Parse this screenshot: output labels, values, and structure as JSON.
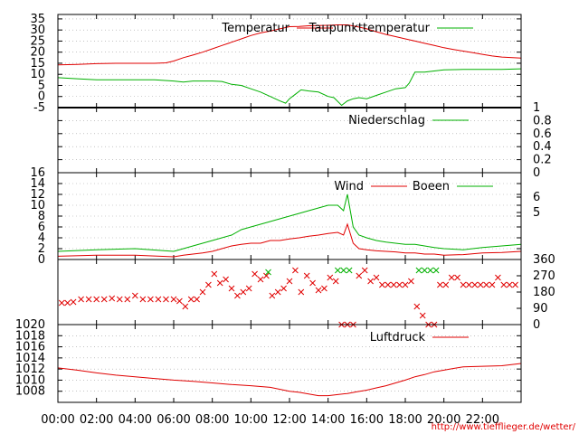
{
  "colors": {
    "red": "#e00000",
    "green": "#00b000",
    "grid": "#a0a0a0",
    "credit": "#e00000"
  },
  "x_ticks": [
    "00:00",
    "02:00",
    "04:00",
    "06:00",
    "08:00",
    "10:00",
    "12:00",
    "14:00",
    "16:00",
    "18:00",
    "20:00",
    "22:00"
  ],
  "credit": "http://www.tiefflieger.de/wetter/",
  "chart_data": [
    {
      "type": "line",
      "x_range_hours": [
        0,
        24
      ],
      "ylim": [
        -5,
        37
      ],
      "yticks": [
        "35",
        "30",
        "25",
        "20",
        "15",
        "10",
        "5",
        "0",
        "-5"
      ],
      "grid": true,
      "legend": "top-right",
      "series": [
        {
          "name": "Temperatur",
          "color": "red",
          "x": [
            0,
            1,
            2,
            3,
            4,
            5,
            5.6,
            6,
            6.5,
            7,
            7.5,
            8,
            8.5,
            9,
            9.5,
            10,
            10.5,
            11,
            11.5,
            12,
            12.5,
            13,
            13.5,
            14,
            14.5,
            15,
            15.5,
            16,
            16.5,
            17,
            17.5,
            18,
            18.5,
            19,
            19.5,
            20,
            20.5,
            21,
            21.5,
            22,
            22.5,
            23,
            24
          ],
          "y": [
            14.3,
            14.5,
            14.8,
            15,
            15,
            15,
            15.2,
            16,
            17.5,
            18.7,
            20,
            21.5,
            23,
            24.5,
            26,
            27.5,
            28.7,
            29.5,
            30.5,
            31.5,
            31.6,
            31.9,
            32,
            32.1,
            32.3,
            32.3,
            31.5,
            30.5,
            29.2,
            28,
            27,
            26,
            25,
            24,
            23,
            22,
            21.2,
            20.5,
            19.8,
            19,
            18.3,
            17.8,
            17.3
          ]
        },
        {
          "name": "Taupunkttemperatur",
          "color": "green",
          "x": [
            0,
            1,
            2,
            3,
            4,
            5,
            6,
            6.5,
            7,
            8,
            8.5,
            9,
            9.5,
            10,
            10.5,
            11,
            11.5,
            11.8,
            12,
            12.3,
            12.6,
            13,
            13.5,
            14,
            14.3,
            14.7,
            15,
            15.3,
            15.6,
            16,
            16.5,
            17,
            17.5,
            18,
            18.2,
            18.5,
            19,
            20,
            21,
            22,
            23,
            24
          ],
          "y": [
            8.5,
            8,
            7.5,
            7.5,
            7.5,
            7.5,
            7,
            6.5,
            7,
            7,
            6.8,
            5.5,
            5,
            3.5,
            2,
            0,
            -2,
            -3,
            -1,
            1,
            3,
            2.5,
            2,
            0,
            -0.5,
            -4,
            -2,
            -1,
            -0.5,
            -1,
            0.5,
            2,
            3.5,
            4,
            6,
            11,
            11,
            12,
            12.2,
            12.2,
            12.2,
            12.5
          ]
        }
      ]
    },
    {
      "type": "line",
      "x_range_hours": [
        0,
        24
      ],
      "ylim": [
        0,
        1
      ],
      "yticks": [
        "1",
        "0.8",
        "0.6",
        "0.4",
        "0.2",
        "0"
      ],
      "axis_side": "right",
      "series": [
        {
          "name": "Niederschlag",
          "color": "green",
          "x": [
            0,
            24
          ],
          "y": [
            0,
            0
          ]
        }
      ]
    },
    {
      "type": "line",
      "x_range_hours": [
        0,
        24
      ],
      "ylim": [
        0,
        16
      ],
      "yticks": [
        "16",
        "14",
        "12",
        "10",
        "8",
        "6",
        "4",
        "2",
        "0"
      ],
      "right_ticks": [
        "6",
        "5"
      ],
      "series": [
        {
          "name": "Wind",
          "color": "red",
          "x": [
            0,
            2,
            4,
            6,
            6.5,
            7,
            7.5,
            8,
            8.5,
            9,
            9.5,
            10,
            10.5,
            11,
            11.5,
            12,
            12.5,
            13,
            13.5,
            14,
            14.5,
            14.8,
            15,
            15.3,
            15.6,
            16,
            16.5,
            17,
            17.5,
            18,
            18.5,
            19,
            19.5,
            20,
            21,
            22,
            23,
            24
          ],
          "y": [
            0.6,
            0.8,
            0.8,
            0.5,
            0.8,
            1,
            1.2,
            1.5,
            2,
            2.5,
            2.8,
            3,
            3,
            3.5,
            3.5,
            3.8,
            4,
            4.3,
            4.5,
            4.8,
            5,
            4.5,
            6.5,
            3,
            2,
            1.8,
            1.6,
            1.5,
            1.4,
            1.2,
            1.2,
            1,
            1,
            0.8,
            0.9,
            1.2,
            1.3,
            1.5
          ]
        },
        {
          "name": "Boeen",
          "color": "green",
          "x": [
            0,
            2,
            4,
            6,
            6.5,
            7,
            7.5,
            8,
            8.5,
            9,
            9.5,
            10,
            10.5,
            11,
            11.5,
            12,
            12.5,
            13,
            13.5,
            14,
            14.5,
            14.8,
            15,
            15.3,
            15.6,
            16,
            16.5,
            17,
            17.5,
            18,
            18.5,
            19,
            19.5,
            20,
            21,
            22,
            23,
            24
          ],
          "y": [
            1.5,
            1.8,
            2,
            1.5,
            2,
            2.5,
            3,
            3.5,
            4,
            4.5,
            5.5,
            6,
            6.5,
            7,
            7.5,
            8,
            8.5,
            9,
            9.5,
            10,
            10,
            9,
            12,
            6,
            4.5,
            4,
            3.5,
            3.2,
            3,
            2.8,
            2.8,
            2.5,
            2.2,
            2,
            1.8,
            2.2,
            2.5,
            2.8
          ]
        }
      ]
    },
    {
      "type": "scatter",
      "x_range_hours": [
        0,
        24
      ],
      "ylim": [
        0,
        360
      ],
      "right_ticks": [
        "360",
        "270",
        "180",
        "90",
        "0"
      ],
      "series": [
        {
          "name": "",
          "color": "red",
          "x": [
            0.2,
            0.5,
            0.8,
            1.2,
            1.6,
            2,
            2.4,
            2.8,
            3.2,
            3.6,
            4,
            4.4,
            4.8,
            5.2,
            5.6,
            6,
            6.3,
            6.6,
            6.9,
            7.2,
            7.5,
            7.8,
            8.1,
            8.4,
            8.7,
            9,
            9.3,
            9.6,
            9.9,
            10.2,
            10.5,
            10.8,
            11.1,
            11.4,
            11.7,
            12,
            12.3,
            12.6,
            12.9,
            13.2,
            13.5,
            13.8,
            14.1,
            14.4,
            14.7,
            15,
            15.3,
            15.6,
            15.9,
            16.2,
            16.5,
            16.8,
            17.1,
            17.4,
            17.7,
            18,
            18.3,
            18.6,
            18.9,
            19.2,
            19.5,
            19.8,
            20.1,
            20.4,
            20.7,
            21,
            21.3,
            21.6,
            21.9,
            22.2,
            22.5,
            22.8,
            23.1,
            23.4,
            23.7
          ],
          "y": [
            120,
            120,
            125,
            140,
            140,
            140,
            140,
            145,
            140,
            140,
            160,
            140,
            140,
            140,
            140,
            140,
            130,
            100,
            140,
            140,
            180,
            220,
            280,
            230,
            250,
            200,
            160,
            180,
            200,
            280,
            250,
            270,
            160,
            180,
            200,
            240,
            300,
            180,
            270,
            230,
            190,
            200,
            260,
            240,
            0,
            0,
            0,
            270,
            300,
            240,
            260,
            220,
            220,
            220,
            220,
            220,
            240,
            100,
            50,
            0,
            0,
            220,
            220,
            260,
            260,
            220,
            220,
            220,
            220,
            220,
            220,
            260,
            220,
            220,
            220
          ]
        },
        {
          "name": "",
          "color": "green",
          "x": [
            10.9,
            14.5,
            14.8,
            15.1,
            18.7,
            19.0,
            19.3,
            19.6
          ],
          "y": [
            290,
            300,
            300,
            300,
            300,
            300,
            300,
            300
          ]
        }
      ]
    },
    {
      "type": "line",
      "x_range_hours": [
        0,
        24
      ],
      "ylim": [
        1006,
        1020
      ],
      "yticks": [
        "1020",
        "1018",
        "1016",
        "1014",
        "1012",
        "1010",
        "1008"
      ],
      "series": [
        {
          "name": "Luftdruck",
          "color": "red",
          "x": [
            0,
            1,
            2,
            3,
            4,
            5,
            6,
            7,
            8,
            9,
            10,
            11,
            12,
            12.5,
            13,
            13.5,
            14,
            14.5,
            15,
            15.5,
            16,
            16.5,
            17,
            17.5,
            18,
            18.5,
            19,
            19.5,
            20,
            20.5,
            21,
            22,
            23,
            24
          ],
          "y": [
            1012.2,
            1011.8,
            1011.3,
            1010.9,
            1010.6,
            1010.3,
            1010,
            1009.8,
            1009.5,
            1009.2,
            1009,
            1008.7,
            1008,
            1007.8,
            1007.5,
            1007.2,
            1007.2,
            1007.4,
            1007.6,
            1007.9,
            1008.2,
            1008.6,
            1009,
            1009.5,
            1010,
            1010.6,
            1011,
            1011.5,
            1011.8,
            1012.1,
            1012.4,
            1012.5,
            1012.6,
            1013
          ]
        }
      ]
    }
  ]
}
